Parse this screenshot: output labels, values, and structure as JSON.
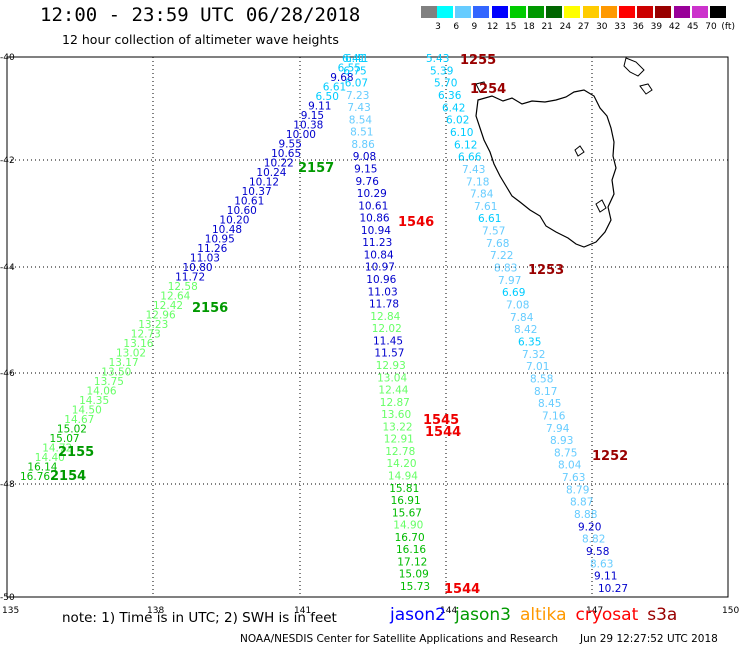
{
  "title": "12:00 - 23:59 UTC 06/28/2018",
  "subtitle": "12 hour collection of altimeter wave heights",
  "color_scale": {
    "unit": "(ft)",
    "bins": [
      {
        "label": "3",
        "color": "#00ffff"
      },
      {
        "label": "6",
        "color": "#66ccff"
      },
      {
        "label": "9",
        "color": "#3366ff"
      },
      {
        "label": "12",
        "color": "#0000ff"
      },
      {
        "label": "15",
        "color": "#00cc00"
      },
      {
        "label": "18",
        "color": "#009900"
      },
      {
        "label": "21",
        "color": "#006600"
      },
      {
        "label": "24",
        "color": "#ffff00"
      },
      {
        "label": "27",
        "color": "#ffcc00"
      },
      {
        "label": "30",
        "color": "#ff9900"
      },
      {
        "label": "33",
        "color": "#ff0000"
      },
      {
        "label": "36",
        "color": "#cc0000"
      },
      {
        "label": "39",
        "color": "#990000"
      },
      {
        "label": "42",
        "color": "#990099"
      },
      {
        "label": "45",
        "color": "#cc33cc"
      },
      {
        "label": "70",
        "color": "#000000"
      }
    ],
    "first_color": "#808080"
  },
  "axes": {
    "lon_ticks": [
      "135",
      "138",
      "141",
      "144",
      "147",
      "150"
    ],
    "lat_ticks": [
      "-40",
      "-42",
      "-44",
      "-46",
      "-48",
      "-50"
    ]
  },
  "satellites": [
    {
      "name": "jason2",
      "color": "#0000ff"
    },
    {
      "name": "jason3",
      "color": "#009900"
    },
    {
      "name": "altika",
      "color": "#ff9900"
    },
    {
      "name": "cryosat",
      "color": "#ff0000"
    },
    {
      "name": "s3a",
      "color": "#990000"
    }
  ],
  "colors": {
    "light": "#00ccff",
    "mid": "#66ccff",
    "blue": "#0000cc",
    "green": "#00bb00",
    "lgreen": "#66ff66",
    "dgreen": "#009900",
    "red": "#ee0000",
    "dred": "#990000"
  },
  "tracks": {
    "track_a": {
      "values": [
        "6.41",
        "6.55",
        "9.68",
        "6.61",
        "6.50",
        "9.11",
        "9.15",
        "10.38",
        "10.00",
        "9.55",
        "10.65",
        "10.22",
        "10.24",
        "10.12",
        "10.37",
        "10.61",
        "10.60",
        "10.20",
        "10.48",
        "10.95",
        "11.26",
        "11.03",
        "10.80",
        "11.72",
        "12.58",
        "12.64",
        "12.42",
        "12.96",
        "13.23",
        "12.73",
        "13.16",
        "13.02",
        "13.17",
        "13.50",
        "13.75",
        "14.06",
        "14.35",
        "14.50",
        "14.67",
        "15.02",
        "15.07",
        "14.72",
        "14.40",
        "16.14",
        "16.76"
      ],
      "times": [
        {
          "label": "2157",
          "color": "#009900"
        },
        {
          "label": "2156",
          "color": "#009900"
        },
        {
          "label": "2155",
          "color": "#009900"
        },
        {
          "label": "2154",
          "color": "#009900"
        }
      ]
    },
    "track_b": {
      "values": [
        "6.41",
        "6.75",
        "6.07",
        "7.23",
        "7.43",
        "8.54",
        "8.51",
        "8.86",
        "9.08",
        "9.15",
        "9.76",
        "10.29",
        "10.61",
        "10.86",
        "10.94",
        "11.23",
        "10.84",
        "10.97",
        "10.96",
        "11.03",
        "11.78",
        "12.84",
        "12.02",
        "11.45",
        "11.57",
        "12.93",
        "13.04",
        "12.44",
        "12.87",
        "13.60",
        "13.22",
        "12.91",
        "12.78",
        "14.20",
        "14.94",
        "15.81",
        "16.91",
        "15.67",
        "14.90",
        "16.70",
        "16.16",
        "17.12",
        "15.09",
        "15.73"
      ],
      "times": [
        {
          "label": "1546",
          "color": "#ee0000"
        },
        {
          "label": "1545",
          "color": "#ee0000"
        },
        {
          "label": "1544",
          "color": "#ee0000"
        },
        {
          "label": "1544",
          "color": "#ee0000"
        }
      ]
    },
    "track_c": {
      "values": [
        "5.43",
        "5.39",
        "5.70",
        "6.36",
        "6.42",
        "6.02",
        "6.10",
        "6.12",
        "6.66",
        "7.43",
        "7.18",
        "7.84",
        "7.61",
        "6.61",
        "7.57",
        "7.68",
        "7.22",
        "8.83",
        "7.97",
        "6.69",
        "7.08",
        "7.84",
        "8.42",
        "6.35",
        "7.32",
        "7.01",
        "8.58",
        "8.17",
        "8.45",
        "7.16",
        "7.94",
        "8.93",
        "8.75",
        "8.04",
        "7.63",
        "8.79",
        "8.87",
        "8.88",
        "9.20",
        "8.82",
        "9.58",
        "8.63",
        "9.11",
        "10.27"
      ],
      "times": [
        {
          "label": "1255",
          "color": "#990000"
        },
        {
          "label": "1254",
          "color": "#990000"
        },
        {
          "label": "1253",
          "color": "#990000"
        },
        {
          "label": "1252",
          "color": "#990000"
        }
      ]
    }
  },
  "note": "note: 1) Time is in UTC; 2) SWH is in feet",
  "credit": "NOAA/NESDIS Center for Satellite Applications and Research",
  "timestamp": "Jun 29 12:27:52 UTC 2018"
}
